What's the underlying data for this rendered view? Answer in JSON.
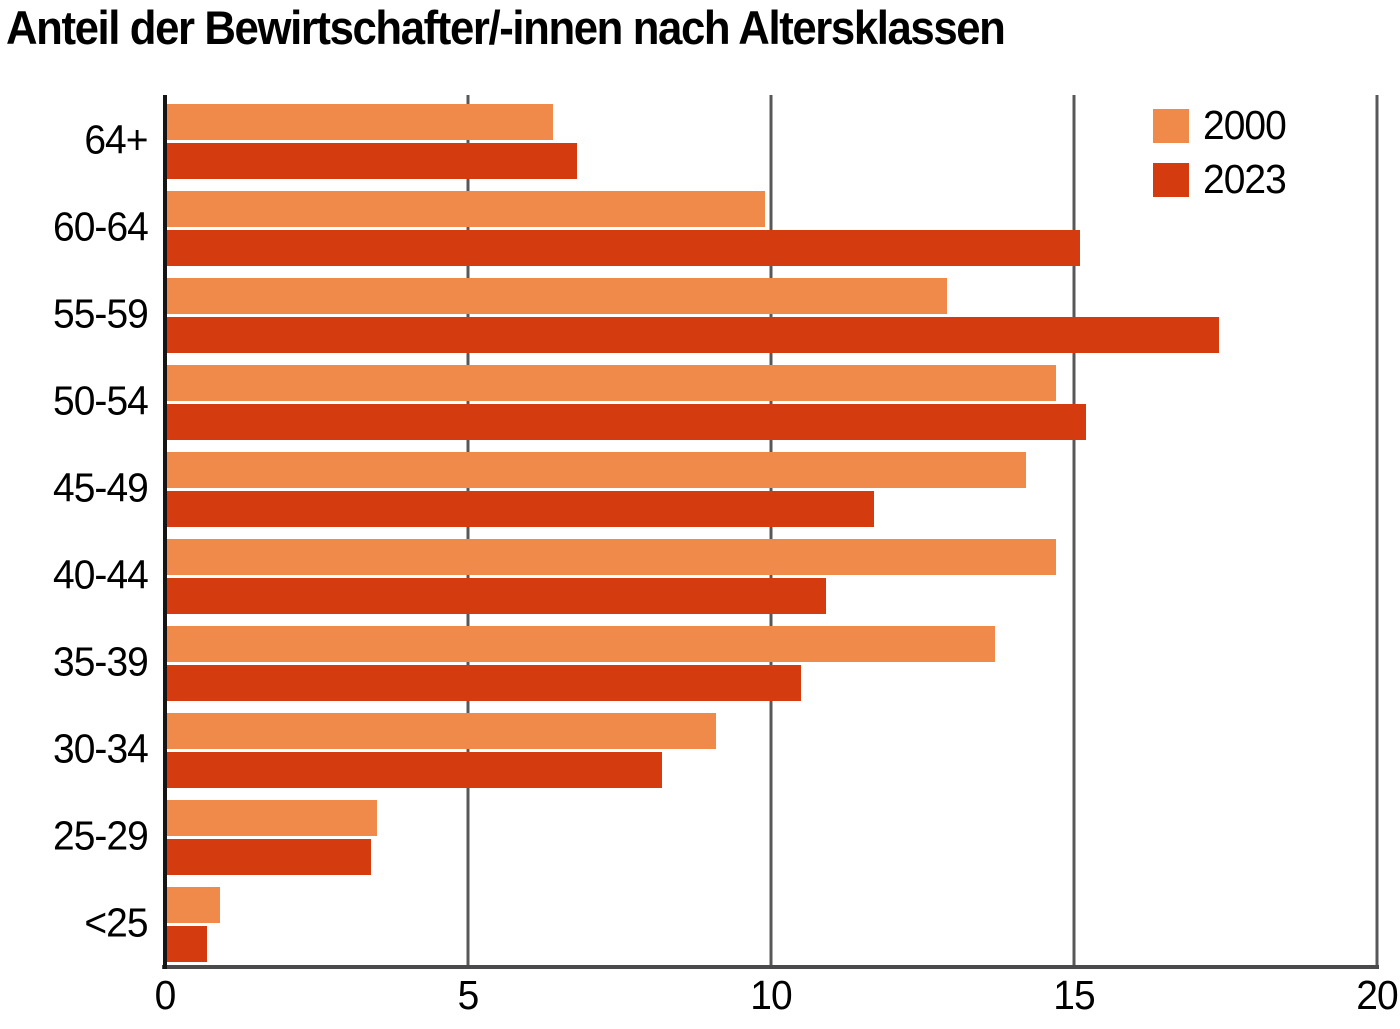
{
  "title": "Anteil der Bewirtschafter/-innen nach Altersklassen",
  "legend": {
    "items": [
      {
        "label": "2000",
        "color": "#F08A4A"
      },
      {
        "label": "2023",
        "color": "#D43B0E"
      }
    ],
    "position": "top-right"
  },
  "chart_data": {
    "type": "bar",
    "orientation": "horizontal",
    "title": "Anteil der Bewirtschafter/-innen nach Altersklassen",
    "categories": [
      "64+",
      "60-64",
      "55-59",
      "50-54",
      "45-49",
      "40-44",
      "35-39",
      "30-34",
      "25-29",
      "<25"
    ],
    "series": [
      {
        "name": "2000",
        "color": "#F08A4A",
        "values": [
          6.4,
          9.9,
          12.9,
          14.7,
          14.2,
          14.7,
          13.7,
          9.1,
          3.5,
          0.9
        ]
      },
      {
        "name": "2023",
        "color": "#D43B0E",
        "values": [
          6.8,
          15.1,
          17.4,
          15.2,
          11.7,
          10.9,
          10.5,
          8.2,
          3.4,
          0.7
        ]
      }
    ],
    "xlabel": "",
    "ylabel": "",
    "xlim": [
      0,
      20
    ],
    "xticks": [
      0,
      5,
      10,
      15,
      20
    ],
    "grid": "vertical-gridlines-at-xticks",
    "legend_position": "top-right",
    "unit": "percent"
  },
  "colors": {
    "background": "#ffffff",
    "grid": "#58585a",
    "axis_y": "#151515",
    "axis_x": "#4a4a4c",
    "text": "#000000"
  }
}
